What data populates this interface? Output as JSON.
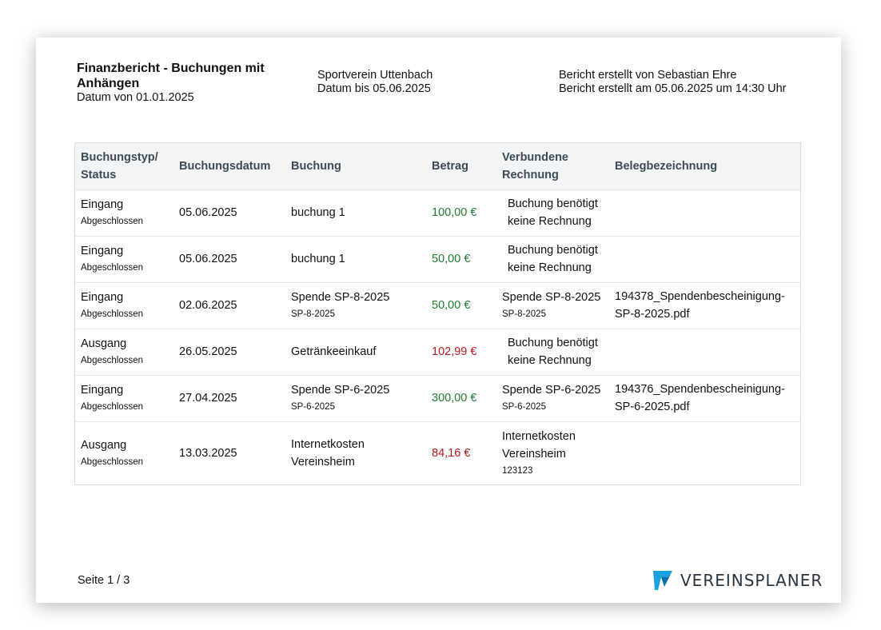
{
  "header": {
    "title": "Finanzbericht - Buchungen mit Anhängen",
    "date_from": "Datum von 01.01.2025",
    "club": "Sportverein Uttenbach",
    "date_to": "Datum bis 05.06.2025",
    "created_by": "Bericht erstellt von Sebastian Ehre",
    "created_at": "Bericht erstellt am 05.06.2025 um 14:30 Uhr"
  },
  "table": {
    "columns": [
      "Buchungstyp/ Status",
      "Buchungsdatum",
      "Buchung",
      "Betrag",
      "Verbundene Rechnung",
      "Belegbezeichnung"
    ],
    "rows": [
      {
        "type": "Eingang",
        "status": "Abgeschlossen",
        "date": "05.06.2025",
        "booking": "buchung 1",
        "booking_sub": "",
        "amount": "100,00 €",
        "invoice": "Buchung benötigt keine Rechnung",
        "invoice_sub": "",
        "document": ""
      },
      {
        "type": "Eingang",
        "status": "Abgeschlossen",
        "date": "05.06.2025",
        "booking": "buchung 1",
        "booking_sub": "",
        "amount": "50,00 €",
        "invoice": "Buchung benötigt keine Rechnung",
        "invoice_sub": "",
        "document": ""
      },
      {
        "type": "Eingang",
        "status": "Abgeschlossen",
        "date": "02.06.2025",
        "booking": "Spende SP-8-2025",
        "booking_sub": "SP-8-2025",
        "amount": "50,00 €",
        "invoice": "Spende SP-8-2025",
        "invoice_sub": "SP-8-2025",
        "document": "194378_Spendenbescheinigung-SP-8-2025.pdf"
      },
      {
        "type": "Ausgang",
        "status": "Abgeschlossen",
        "date": "26.05.2025",
        "booking": "Getränkeeinkauf",
        "booking_sub": "",
        "amount": "102,99 €",
        "invoice": "Buchung benötigt keine Rechnung",
        "invoice_sub": "",
        "document": ""
      },
      {
        "type": "Eingang",
        "status": "Abgeschlossen",
        "date": "27.04.2025",
        "booking": "Spende SP-6-2025",
        "booking_sub": "SP-6-2025",
        "amount": "300,00 €",
        "invoice": "Spende SP-6-2025",
        "invoice_sub": "SP-6-2025",
        "document": "194376_Spendenbescheinigung-SP-6-2025.pdf"
      },
      {
        "type": "Ausgang",
        "status": "Abgeschlossen",
        "date": "13.03.2025",
        "booking": "Internetkosten Vereinsheim",
        "booking_sub": "",
        "amount": "84,16 €",
        "invoice": "Internetkosten Vereinsheim",
        "invoice_sub": "123123",
        "document": ""
      }
    ]
  },
  "footer": {
    "page": "Seite 1 / 3",
    "logo_text": "VEREINSPLANER"
  },
  "colors": {
    "income": "#1f7a2e",
    "expense": "#b3191c",
    "header_bg": "#f2f4f6",
    "logo_accent": "#1aa0dc"
  }
}
